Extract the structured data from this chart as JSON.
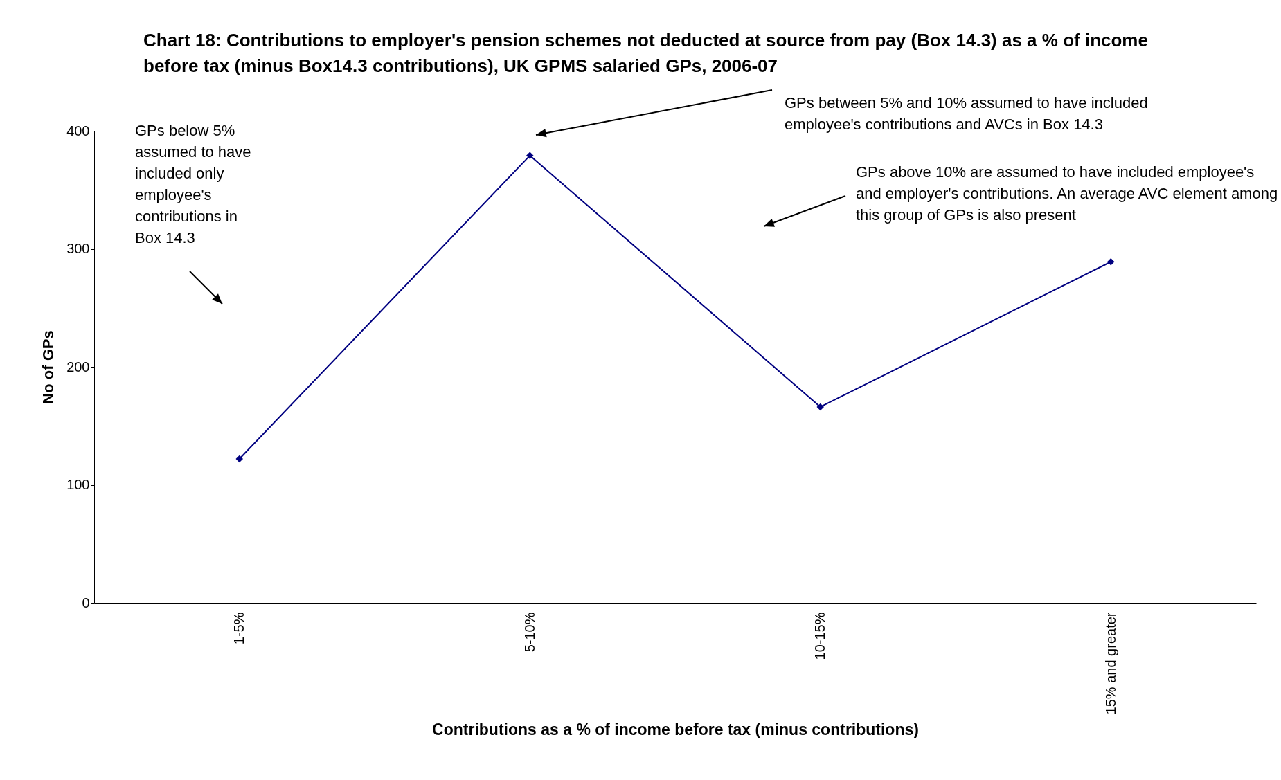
{
  "chart_data": {
    "type": "line",
    "title": "Chart 18: Contributions to employer's pension schemes not deducted at source from pay (Box 14.3) as a % of income before tax (minus Box14.3 contributions), UK GPMS salaried GPs, 2006-07",
    "xlabel": "Contributions as a % of income before tax (minus contributions)",
    "ylabel": "No of GPs",
    "categories": [
      "1-5%",
      "5-10%",
      "10-15%",
      "15% and greater"
    ],
    "series": [
      {
        "color": "#000080",
        "values": [
          122,
          379,
          166,
          289
        ]
      }
    ],
    "ylim": [
      0,
      400
    ],
    "yticks": [
      0,
      100,
      200,
      300,
      400
    ],
    "grid": false,
    "legend": false,
    "marker": "diamond",
    "line_style": "solid",
    "annotations": [
      "GPs below 5% assumed to have included only employee's contributions in Box 14.3",
      "GPs between 5% and 10% assumed to have included employee's contributions and AVCs in Box 14.3",
      "GPs above 10% are assumed to have included employee's and employer's contributions.  An average AVC element among this group of GPs is also present"
    ]
  }
}
